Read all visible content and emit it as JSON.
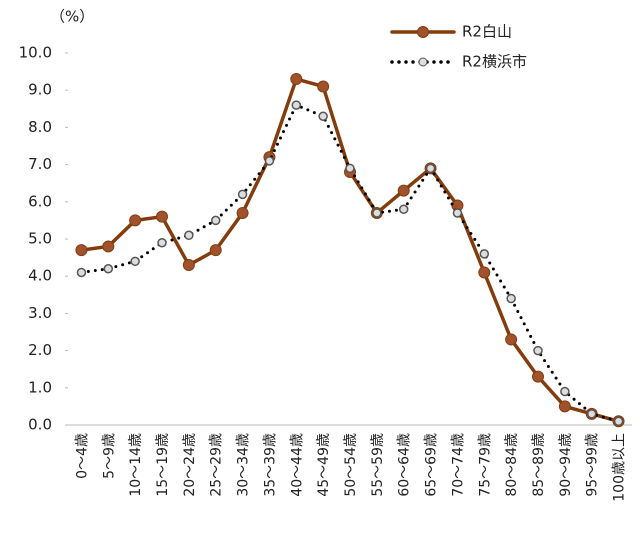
{
  "chart_data": {
    "type": "line",
    "y_label": "（%）",
    "categories": [
      "0～4歳",
      "5～9歳",
      "10～14歳",
      "15～19歳",
      "20～24歳",
      "25～29歳",
      "30～34歳",
      "35～39歳",
      "40～44歳",
      "45～49歳",
      "50～54歳",
      "55～59歳",
      "60～64歳",
      "65～69歳",
      "70～74歳",
      "75～79歳",
      "80～84歳",
      "85～89歳",
      "90～94歳",
      "95～99歳",
      "100歳以上"
    ],
    "series": [
      {
        "name": "R2白山",
        "color": "#843c0c",
        "style": "solid",
        "values": [
          4.7,
          4.8,
          5.5,
          5.6,
          4.3,
          4.7,
          5.7,
          7.2,
          9.3,
          9.1,
          6.8,
          5.7,
          6.3,
          6.9,
          5.9,
          4.1,
          2.3,
          1.3,
          0.5,
          0.3,
          0.1
        ]
      },
      {
        "name": "R2横浜市",
        "color": "#000000",
        "style": "dotted",
        "values": [
          4.1,
          4.2,
          4.4,
          4.9,
          5.1,
          5.5,
          6.2,
          7.1,
          8.6,
          8.3,
          6.9,
          5.7,
          5.8,
          6.9,
          5.7,
          4.6,
          3.4,
          2.0,
          0.9,
          0.3,
          0.1
        ]
      }
    ],
    "ylim": [
      0,
      10
    ],
    "yticks": [
      {
        "value": 0,
        "label": "0.0"
      },
      {
        "value": 1,
        "label": "1.0"
      },
      {
        "value": 2,
        "label": "2.0"
      },
      {
        "value": 3,
        "label": "3.0"
      },
      {
        "value": 4,
        "label": "4.0"
      },
      {
        "value": 5,
        "label": "5.0"
      },
      {
        "value": 6,
        "label": "6.0"
      },
      {
        "value": 7,
        "label": "7.0"
      },
      {
        "value": 8,
        "label": "8.0"
      },
      {
        "value": 9,
        "label": "9.0"
      },
      {
        "value": 10,
        "label": "10.0"
      }
    ],
    "legend": "top-right"
  }
}
